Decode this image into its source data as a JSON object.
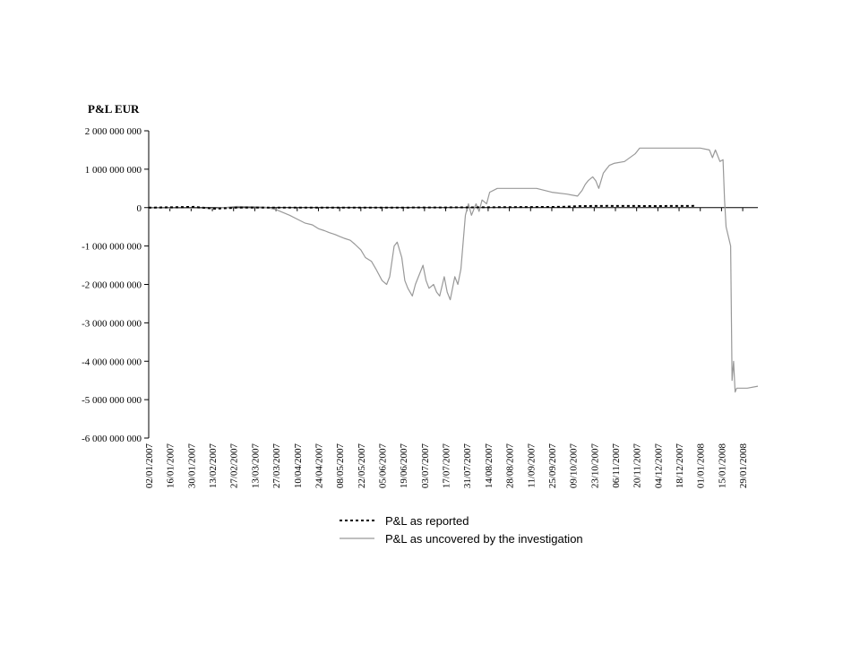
{
  "chart_data": {
    "type": "line",
    "title": "",
    "ylabel": "P&L EUR",
    "xlabel": "",
    "ylim": [
      -6000000000,
      2000000000
    ],
    "yticks": [
      "2 000 000 000",
      "1 000 000 000",
      "0",
      "-1 000 000 000",
      "-2 000 000 000",
      "-3 000 000 000",
      "-4 000 000 000",
      "-5 000 000 000",
      "-6 000 000 000"
    ],
    "ytick_values": [
      2000000000,
      1000000000,
      0,
      -1000000000,
      -2000000000,
      -3000000000,
      -4000000000,
      -5000000000,
      -6000000000
    ],
    "xlim": [
      "2007-01-02",
      "2008-02-08"
    ],
    "xticks": [
      "02/01/2007",
      "16/01/2007",
      "30/01/2007",
      "13/02/2007",
      "27/02/2007",
      "13/03/2007",
      "27/03/2007",
      "10/04/2007",
      "24/04/2007",
      "08/05/2007",
      "22/05/2007",
      "05/06/2007",
      "19/06/2007",
      "03/07/2007",
      "17/07/2007",
      "31/07/2007",
      "14/08/2007",
      "28/08/2007",
      "11/09/2007",
      "25/09/2007",
      "09/10/2007",
      "23/10/2007",
      "06/11/2007",
      "20/11/2007",
      "04/12/2007",
      "18/12/2007",
      "01/01/2008",
      "15/01/2008",
      "29/01/2008"
    ],
    "legend_position": "bottom",
    "series": [
      {
        "name": "P&L as reported",
        "style": "dashed",
        "color": "#000000",
        "x": [
          "2007-01-02",
          "2007-02-01",
          "2007-02-15",
          "2007-03-01",
          "2007-04-01",
          "2007-06-01",
          "2007-08-01",
          "2007-10-01",
          "2007-10-15",
          "2007-11-01",
          "2007-12-01",
          "2007-12-28"
        ],
        "y": [
          0,
          20000000,
          -30000000,
          0,
          0,
          0,
          5000000,
          20000000,
          40000000,
          45000000,
          40000000,
          45000000
        ]
      },
      {
        "name": "P&L as uncovered by the investigation",
        "style": "solid",
        "color": "#999999",
        "x": [
          "2007-01-02",
          "2007-02-15",
          "2007-03-01",
          "2007-03-13",
          "2007-03-20",
          "2007-03-27",
          "2007-04-05",
          "2007-04-10",
          "2007-04-15",
          "2007-04-20",
          "2007-04-24",
          "2007-04-28",
          "2007-05-01",
          "2007-05-05",
          "2007-05-08",
          "2007-05-11",
          "2007-05-15",
          "2007-05-18",
          "2007-05-22",
          "2007-05-25",
          "2007-05-29",
          "2007-06-01",
          "2007-06-05",
          "2007-06-08",
          "2007-06-10",
          "2007-06-13",
          "2007-06-15",
          "2007-06-18",
          "2007-06-20",
          "2007-06-22",
          "2007-06-25",
          "2007-06-27",
          "2007-06-29",
          "2007-07-02",
          "2007-07-04",
          "2007-07-06",
          "2007-07-09",
          "2007-07-11",
          "2007-07-13",
          "2007-07-16",
          "2007-07-18",
          "2007-07-20",
          "2007-07-23",
          "2007-07-25",
          "2007-07-27",
          "2007-07-30",
          "2007-08-01",
          "2007-08-03",
          "2007-08-06",
          "2007-08-08",
          "2007-08-10",
          "2007-08-13",
          "2007-08-15",
          "2007-08-20",
          "2007-08-28",
          "2007-09-05",
          "2007-09-15",
          "2007-09-25",
          "2007-10-05",
          "2007-10-12",
          "2007-10-15",
          "2007-10-17",
          "2007-10-19",
          "2007-10-22",
          "2007-10-24",
          "2007-10-26",
          "2007-10-29",
          "2007-10-31",
          "2007-11-02",
          "2007-11-05",
          "2007-11-12",
          "2007-11-19",
          "2007-11-22",
          "2007-11-26",
          "2007-12-04",
          "2007-12-18",
          "2008-01-01",
          "2008-01-07",
          "2008-01-09",
          "2008-01-11",
          "2008-01-14",
          "2008-01-16",
          "2008-01-17",
          "2008-01-18",
          "2008-01-21",
          "2008-01-22",
          "2008-01-23",
          "2008-01-24",
          "2008-01-25",
          "2008-01-28",
          "2008-02-01",
          "2008-02-08"
        ],
        "y": [
          -10000000,
          -20000000,
          30000000,
          20000000,
          10000000,
          -50000000,
          -200000000,
          -300000000,
          -400000000,
          -450000000,
          -550000000,
          -600000000,
          -650000000,
          -700000000,
          -750000000,
          -800000000,
          -850000000,
          -950000000,
          -1100000000,
          -1300000000,
          -1400000000,
          -1600000000,
          -1900000000,
          -2000000000,
          -1800000000,
          -1000000000,
          -900000000,
          -1300000000,
          -1900000000,
          -2100000000,
          -2300000000,
          -2000000000,
          -1800000000,
          -1500000000,
          -1900000000,
          -2100000000,
          -2000000000,
          -2200000000,
          -2300000000,
          -1800000000,
          -2200000000,
          -2400000000,
          -1800000000,
          -2000000000,
          -1600000000,
          -200000000,
          100000000,
          -200000000,
          100000000,
          -100000000,
          200000000,
          100000000,
          400000000,
          500000000,
          500000000,
          500000000,
          500000000,
          400000000,
          350000000,
          300000000,
          450000000,
          600000000,
          700000000,
          800000000,
          700000000,
          500000000,
          900000000,
          1000000000,
          1100000000,
          1150000000,
          1200000000,
          1400000000,
          1550000000,
          1550000000,
          1550000000,
          1550000000,
          1550000000,
          1500000000,
          1300000000,
          1500000000,
          1200000000,
          1250000000,
          200000000,
          -500000000,
          -1000000000,
          -4500000000,
          -4000000000,
          -4800000000,
          -4700000000,
          -4700000000,
          -4700000000,
          -4650000000
        ]
      }
    ]
  }
}
